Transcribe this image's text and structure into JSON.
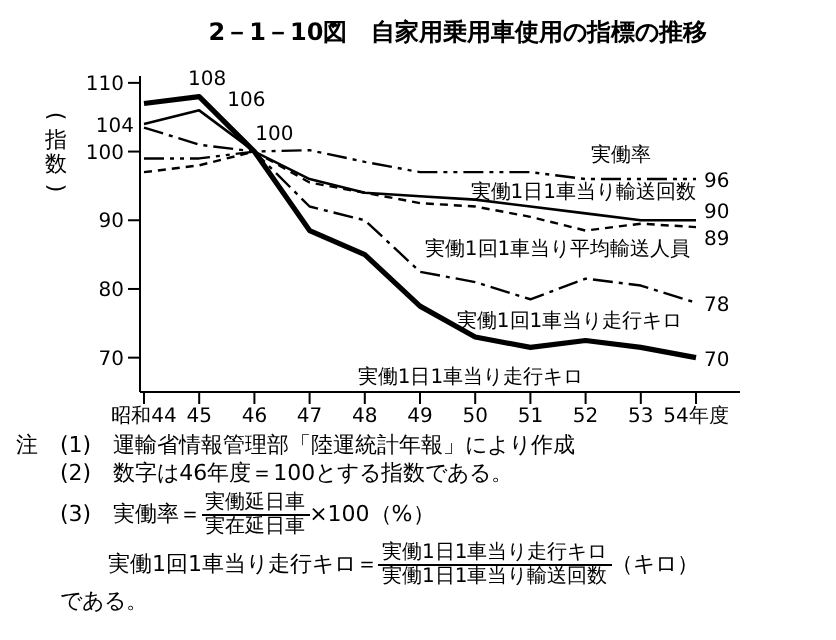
{
  "chart_data": {
    "type": "line",
    "title": "2－1－10図　自家用乗用車使用の指標の推移",
    "ylabel": "(指数)",
    "categories": [
      "昭和44",
      "45",
      "46",
      "47",
      "48",
      "49",
      "50",
      "51",
      "52",
      "53",
      "54年度"
    ],
    "ylim": [
      65,
      111
    ],
    "yticks": [
      70,
      80,
      90,
      100,
      110
    ],
    "grid": false,
    "legend": false,
    "marker": "none",
    "series": [
      {
        "name": "実働率",
        "color": "#000000",
        "line_style": "dotted",
        "values": [
          99,
          99,
          100,
          100.2,
          98.5,
          97,
          97,
          97,
          96,
          96,
          96
        ],
        "value_labels": [
          null,
          null,
          null,
          null,
          null,
          null,
          null,
          null,
          null,
          null,
          "96"
        ]
      },
      {
        "name": "実働1日1車当り輸送回数",
        "color": "#000000",
        "line_style": "solid",
        "values": [
          104,
          106,
          100,
          96,
          94,
          93.5,
          93,
          92,
          91,
          90,
          90
        ],
        "value_labels": [
          "104",
          "106",
          null,
          null,
          null,
          null,
          null,
          null,
          null,
          null,
          "90"
        ]
      },
      {
        "name": "実働1回1車当り平均輸送人員",
        "color": "#000000",
        "line_style": "dashed",
        "values": [
          97,
          98,
          100,
          95.5,
          94,
          92.5,
          92,
          90.5,
          88.5,
          89.5,
          89
        ],
        "value_labels": [
          null,
          null,
          null,
          null,
          null,
          null,
          null,
          null,
          null,
          null,
          "89"
        ]
      },
      {
        "name": "実働1回1車当り走行キロ",
        "color": "#000000",
        "line_style": "dashed",
        "values": [
          103.5,
          101,
          100,
          92,
          90,
          82.5,
          81,
          78.5,
          81.5,
          80.5,
          78
        ],
        "value_labels": [
          null,
          null,
          null,
          null,
          null,
          null,
          null,
          null,
          null,
          null,
          "78"
        ]
      },
      {
        "name": "実働1日1車当り走行キロ",
        "color": "#000000",
        "line_style": "solid",
        "values": [
          107,
          108,
          100,
          88.5,
          85,
          77.5,
          73,
          71.5,
          72.5,
          71.5,
          70
        ],
        "value_labels": [
          null,
          "108",
          "100",
          null,
          null,
          null,
          null,
          null,
          null,
          null,
          "70"
        ]
      }
    ],
    "annotations": [
      "注",
      "(1)　運輸省情報管理部「陸運統計年報」により作成",
      "(2)　数字は46年度＝100とする指数である。",
      "(3)　実働率＝",
      "実働延日車",
      "実在延日車",
      "×100（%）",
      "実働1回1車当り走行キロ＝",
      "実働1日1車当り走行キロ",
      "実働1日1車当り輸送回数",
      "（キロ）",
      "である。"
    ]
  }
}
